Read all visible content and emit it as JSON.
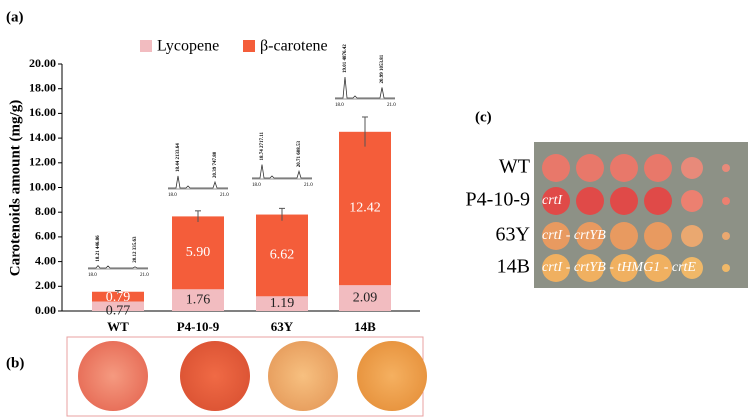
{
  "chart_data": {
    "type": "stacked_bar",
    "panel_label": "(a)",
    "y_label": "Carotenoids amount (mg/g)",
    "categories": [
      "WT",
      "P4-10-9",
      "63Y",
      "14B"
    ],
    "series": [
      {
        "name": "Lycopene",
        "color": "#f2bcc0",
        "values": [
          0.77,
          1.76,
          1.19,
          2.09
        ],
        "value_labels": [
          "0.77",
          "1.76",
          "1.19",
          "2.09"
        ]
      },
      {
        "name": "β-carotene",
        "color": "#f45d3a",
        "values": [
          0.79,
          5.9,
          6.62,
          12.42
        ],
        "value_labels": [
          "0.79",
          "5.90",
          "6.62",
          "12.42"
        ],
        "errors": [
          0.1,
          0.45,
          0.5,
          1.2
        ]
      }
    ],
    "ylim": [
      0,
      20
    ],
    "yticks": [
      {
        "value": 0,
        "label": "0.00"
      },
      {
        "value": 2,
        "label": "2.00"
      },
      {
        "value": 4,
        "label": "4.00"
      },
      {
        "value": 6,
        "label": "6.00"
      },
      {
        "value": 8,
        "label": "8.00"
      },
      {
        "value": 10,
        "label": "10.00"
      },
      {
        "value": 12,
        "label": "12.00"
      },
      {
        "value": 14,
        "label": "14.00"
      },
      {
        "value": 16,
        "label": "16.00"
      },
      {
        "value": 18,
        "label": "18.00"
      },
      {
        "value": 20,
        "label": "20.00"
      }
    ],
    "insets": [
      {
        "peaks": [
          "18.21  446.86",
          "20.12  335.63"
        ],
        "x_start": "18.0",
        "x_end": "21.0"
      },
      {
        "peaks": [
          "18.44  2133.64",
          "20.39  747.80"
        ],
        "x_start": "18.0",
        "x_end": "21.0"
      },
      {
        "peaks": [
          "18.74  2717.11",
          "20.71  608.53"
        ],
        "x_start": "18.0",
        "x_end": "21.0"
      },
      {
        "peaks": [
          "19.01  4876.42",
          "20.99  1053.81"
        ],
        "x_start": "18.0",
        "x_end": "21.0"
      }
    ]
  },
  "panel_b": {
    "label": "(b)"
  },
  "panel_c": {
    "label": "(c)",
    "rows": [
      {
        "strain": "WT",
        "genes": null
      },
      {
        "strain": "P4-10-9",
        "genes": "crtI"
      },
      {
        "strain": "63Y",
        "genes": "crtI - crtYB"
      },
      {
        "strain": "14B",
        "genes": "crtI - crtYB - tHMG1 - crtE"
      }
    ]
  }
}
